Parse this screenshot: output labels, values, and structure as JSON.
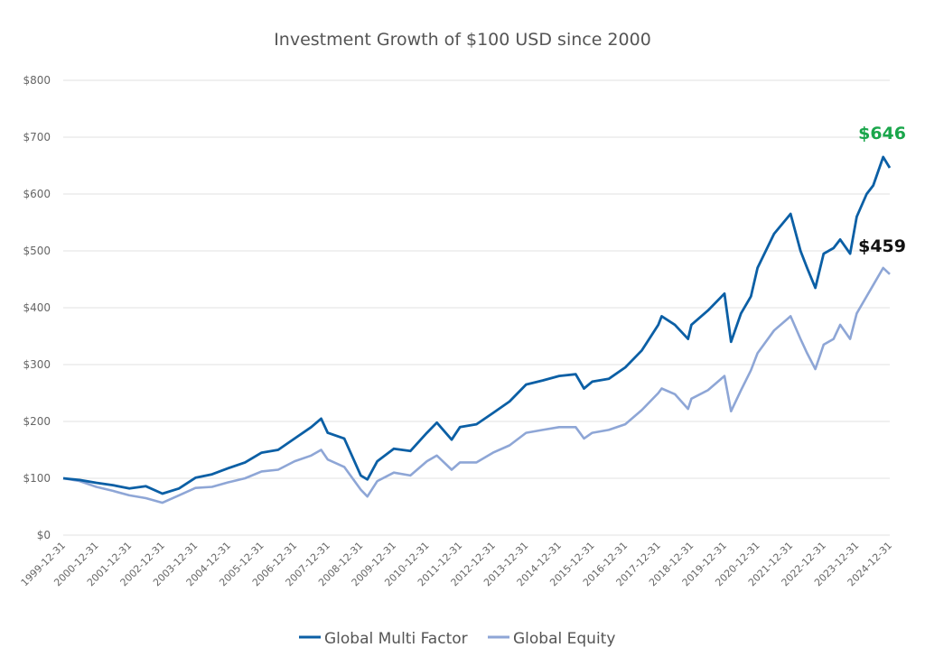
{
  "chart_data": {
    "type": "line",
    "title": "Investment Growth of $100 USD since 2000",
    "xlabel": "",
    "ylabel": "",
    "ylim": [
      0,
      800
    ],
    "yticks": [
      "$0",
      "$100",
      "$200",
      "$300",
      "$400",
      "$500",
      "$600",
      "$700",
      "$800"
    ],
    "xlim": [
      2000,
      2025
    ],
    "xticks": [
      "1999-12-31",
      "2000-12-31",
      "2001-12-31",
      "2002-12-31",
      "2003-12-31",
      "2004-12-31",
      "2005-12-31",
      "2006-12-31",
      "2007-12-31",
      "2008-12-31",
      "2009-12-31",
      "2010-12-31",
      "2011-12-31",
      "2012-12-31",
      "2013-12-31",
      "2014-12-31",
      "2015-12-31",
      "2016-12-31",
      "2017-12-31",
      "2018-12-31",
      "2019-12-31",
      "2020-12-31",
      "2021-12-31",
      "2022-12-31",
      "2023-12-31",
      "2024-12-31"
    ],
    "grid": true,
    "legend_position": "bottom",
    "x": [
      2000,
      2000.5,
      2001,
      2001.5,
      2002,
      2002.5,
      2003,
      2003.5,
      2004,
      2004.5,
      2005,
      2005.5,
      2006,
      2006.5,
      2007,
      2007.5,
      2007.8,
      2008,
      2008.5,
      2009,
      2009.2,
      2009.5,
      2010,
      2010.5,
      2011,
      2011.3,
      2011.75,
      2012,
      2012.5,
      2013,
      2013.5,
      2014,
      2014.5,
      2015,
      2015.5,
      2015.75,
      2016,
      2016.5,
      2017,
      2017.5,
      2018,
      2018.1,
      2018.5,
      2018.9,
      2019,
      2019.5,
      2020,
      2020.2,
      2020.5,
      2020.8,
      2021,
      2021.5,
      2021.9,
      2022,
      2022.3,
      2022.5,
      2022.75,
      2023,
      2023.3,
      2023.5,
      2023.8,
      2024,
      2024.3,
      2024.5,
      2024.8,
      2025
    ],
    "series": [
      {
        "name": "Global Multi Factor",
        "color": "#0b5fa5",
        "values": [
          100,
          97,
          92,
          88,
          82,
          86,
          73,
          82,
          101,
          107,
          118,
          128,
          145,
          150,
          170,
          190,
          205,
          180,
          170,
          105,
          98,
          130,
          152,
          148,
          180,
          198,
          168,
          190,
          195,
          215,
          235,
          265,
          272,
          280,
          283,
          258,
          270,
          275,
          295,
          325,
          370,
          385,
          370,
          345,
          370,
          395,
          425,
          340,
          390,
          420,
          470,
          530,
          558,
          565,
          500,
          470,
          435,
          495,
          505,
          520,
          495,
          560,
          600,
          615,
          665,
          646
        ]
      },
      {
        "name": "Global Equity",
        "color": "#8ea6d6",
        "values": [
          100,
          95,
          85,
          78,
          70,
          65,
          57,
          70,
          83,
          85,
          93,
          100,
          112,
          115,
          130,
          140,
          150,
          133,
          120,
          80,
          68,
          95,
          110,
          105,
          130,
          140,
          115,
          128,
          128,
          145,
          158,
          180,
          185,
          190,
          190,
          170,
          180,
          185,
          195,
          220,
          250,
          258,
          248,
          222,
          240,
          255,
          280,
          218,
          255,
          290,
          320,
          360,
          380,
          385,
          345,
          320,
          292,
          335,
          345,
          370,
          345,
          390,
          420,
          440,
          470,
          459
        ]
      }
    ],
    "annotations": [
      {
        "text": "$646",
        "series": "Global Multi Factor",
        "color": "#1aa64b"
      },
      {
        "text": "$459",
        "series": "Global Equity",
        "color": "#111111"
      }
    ]
  }
}
